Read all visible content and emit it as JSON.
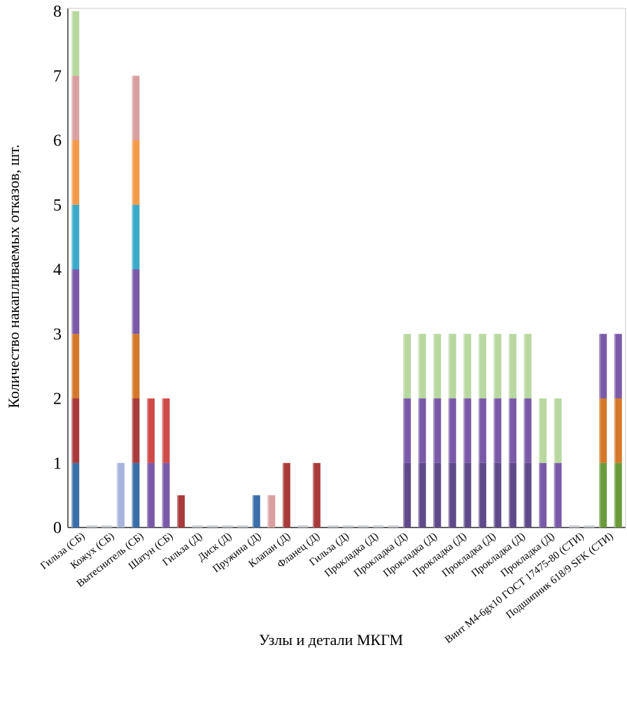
{
  "chart_data": {
    "type": "bar",
    "stacked": true,
    "xlabel": "Узлы и детали МКГМ",
    "ylabel": "Количество накапливаемых отказов, шт.",
    "ylim": [
      0,
      8
    ],
    "yticks": [
      "0",
      "1",
      "2",
      "3",
      "4",
      "5",
      "6",
      "7",
      "8"
    ],
    "grid": false,
    "category_labels": [
      "Гильза (СБ)",
      "Кожух (СБ)",
      "Вытеснитель (СБ)",
      "Шатун (СБ)",
      "Гильза (Д)",
      "Диск (Д)",
      "Пружина (Д)",
      "Клапан (Д)",
      "Фланец (Д)",
      "Гильза (Д)",
      "Прокладка (Д)",
      "Прокладка (Д)",
      "Прокладка (Д)",
      "Прокладка (Д)",
      "Прокладка (Д)",
      "Прокладка (Д)",
      "Прокладка (Д)",
      "Винт М4-6gx10 ГОСТ 17475-80 (СТИ)",
      "Подшипник 618/9 SFK (СТИ)"
    ],
    "colors": {
      "blue": "#3a6ea8",
      "red": "#a83a3a",
      "bright_red": "#d04a4a",
      "orange": "#d4782a",
      "light_orange": "#f39a4a",
      "purple": "#7a5aa8",
      "dark_purple": "#5e4a8a",
      "cyan": "#3aaac8",
      "pink": "#d8a0a0",
      "light_green": "#b8d8a0",
      "lavender": "#a8b4dc",
      "green": "#6a9a3a"
    },
    "bars": [
      {
        "segments": [
          {
            "value": 1,
            "color": "blue"
          },
          {
            "value": 1,
            "color": "red"
          },
          {
            "value": 1,
            "color": "orange"
          },
          {
            "value": 1,
            "color": "purple"
          },
          {
            "value": 1,
            "color": "cyan"
          },
          {
            "value": 1,
            "color": "light_orange"
          },
          {
            "value": 1,
            "color": "pink"
          },
          {
            "value": 1,
            "color": "light_green"
          }
        ]
      },
      {
        "segments": []
      },
      {
        "segments": []
      },
      {
        "segments": [
          {
            "value": 1,
            "color": "lavender"
          }
        ]
      },
      {
        "segments": [
          {
            "value": 1,
            "color": "blue"
          },
          {
            "value": 1,
            "color": "red"
          },
          {
            "value": 1,
            "color": "orange"
          },
          {
            "value": 1,
            "color": "purple"
          },
          {
            "value": 1,
            "color": "cyan"
          },
          {
            "value": 1,
            "color": "light_orange"
          },
          {
            "value": 1,
            "color": "pink"
          }
        ]
      },
      {
        "segments": [
          {
            "value": 1,
            "color": "purple"
          },
          {
            "value": 1,
            "color": "bright_red"
          }
        ]
      },
      {
        "segments": [
          {
            "value": 1,
            "color": "purple"
          },
          {
            "value": 1,
            "color": "bright_red"
          }
        ]
      },
      {
        "segments": [
          {
            "value": 0.5,
            "color": "red"
          }
        ]
      },
      {
        "segments": []
      },
      {
        "segments": []
      },
      {
        "segments": []
      },
      {
        "segments": []
      },
      {
        "segments": [
          {
            "value": 0.5,
            "color": "blue"
          }
        ]
      },
      {
        "segments": [
          {
            "value": 0.5,
            "color": "pink"
          }
        ]
      },
      {
        "segments": [
          {
            "value": 1,
            "color": "red"
          }
        ]
      },
      {
        "segments": []
      },
      {
        "segments": [
          {
            "value": 1,
            "color": "red"
          }
        ]
      },
      {
        "segments": []
      },
      {
        "segments": []
      },
      {
        "segments": []
      },
      {
        "segments": []
      },
      {
        "segments": []
      },
      {
        "segments": [
          {
            "value": 1,
            "color": "dark_purple"
          },
          {
            "value": 1,
            "color": "purple"
          },
          {
            "value": 1,
            "color": "light_green"
          }
        ]
      },
      {
        "segments": [
          {
            "value": 1,
            "color": "dark_purple"
          },
          {
            "value": 1,
            "color": "purple"
          },
          {
            "value": 1,
            "color": "light_green"
          }
        ]
      },
      {
        "segments": [
          {
            "value": 1,
            "color": "dark_purple"
          },
          {
            "value": 1,
            "color": "purple"
          },
          {
            "value": 1,
            "color": "light_green"
          }
        ]
      },
      {
        "segments": [
          {
            "value": 1,
            "color": "dark_purple"
          },
          {
            "value": 1,
            "color": "purple"
          },
          {
            "value": 1,
            "color": "light_green"
          }
        ]
      },
      {
        "segments": [
          {
            "value": 1,
            "color": "dark_purple"
          },
          {
            "value": 1,
            "color": "purple"
          },
          {
            "value": 1,
            "color": "light_green"
          }
        ]
      },
      {
        "segments": [
          {
            "value": 1,
            "color": "dark_purple"
          },
          {
            "value": 1,
            "color": "purple"
          },
          {
            "value": 1,
            "color": "light_green"
          }
        ]
      },
      {
        "segments": [
          {
            "value": 1,
            "color": "dark_purple"
          },
          {
            "value": 1,
            "color": "purple"
          },
          {
            "value": 1,
            "color": "light_green"
          }
        ]
      },
      {
        "segments": [
          {
            "value": 1,
            "color": "dark_purple"
          },
          {
            "value": 1,
            "color": "purple"
          },
          {
            "value": 1,
            "color": "light_green"
          }
        ]
      },
      {
        "segments": [
          {
            "value": 1,
            "color": "dark_purple"
          },
          {
            "value": 1,
            "color": "purple"
          },
          {
            "value": 1,
            "color": "light_green"
          }
        ]
      },
      {
        "segments": [
          {
            "value": 1,
            "color": "purple"
          },
          {
            "value": 1,
            "color": "light_green"
          }
        ]
      },
      {
        "segments": [
          {
            "value": 1,
            "color": "purple"
          },
          {
            "value": 1,
            "color": "light_green"
          }
        ]
      },
      {
        "segments": []
      },
      {
        "segments": []
      },
      {
        "segments": [
          {
            "value": 1,
            "color": "green"
          },
          {
            "value": 1,
            "color": "orange"
          },
          {
            "value": 1,
            "color": "purple"
          }
        ]
      },
      {
        "segments": [
          {
            "value": 1,
            "color": "green"
          },
          {
            "value": 1,
            "color": "orange"
          },
          {
            "value": 1,
            "color": "purple"
          }
        ]
      }
    ]
  }
}
